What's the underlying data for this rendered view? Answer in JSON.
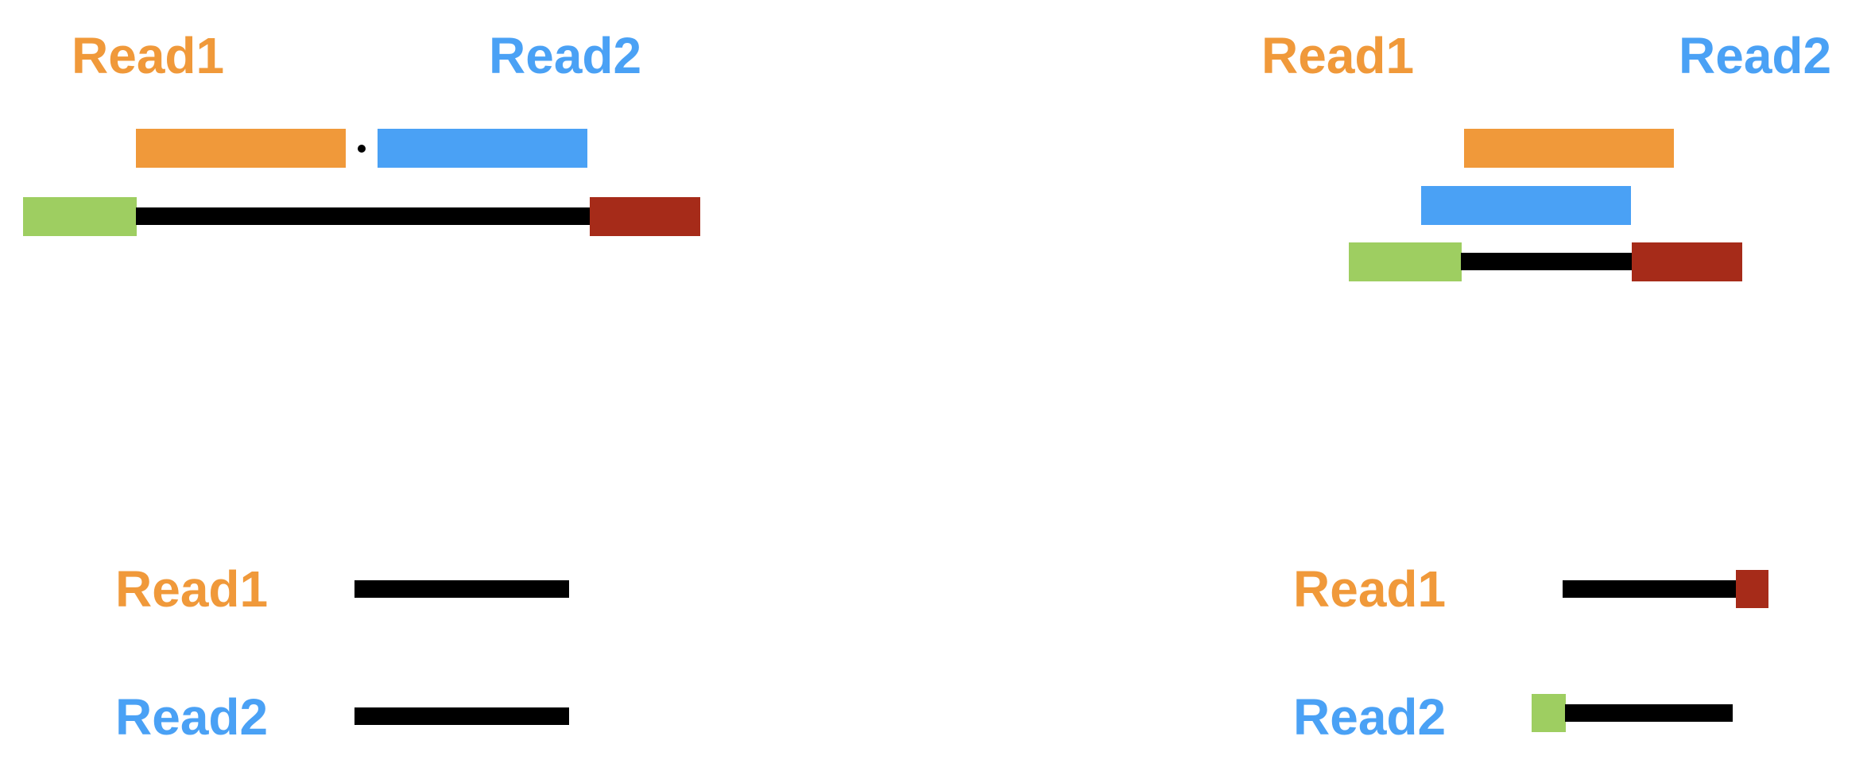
{
  "colors": {
    "read1": "#F0993A",
    "read2": "#4AA1F5",
    "insert": "#000000",
    "adapter_left": "#9ECE61",
    "adapter_right": "#A62B19"
  },
  "panels": {
    "top_left": {
      "read1_label": "Read1",
      "read2_label": "Read2"
    },
    "top_right": {
      "read1_label": "Read1",
      "read2_label": "Read2"
    },
    "bottom_left": {
      "read1_label": "Read1",
      "read2_label": "Read2"
    },
    "bottom_right": {
      "read1_label": "Read1",
      "read2_label": "Read2"
    }
  }
}
